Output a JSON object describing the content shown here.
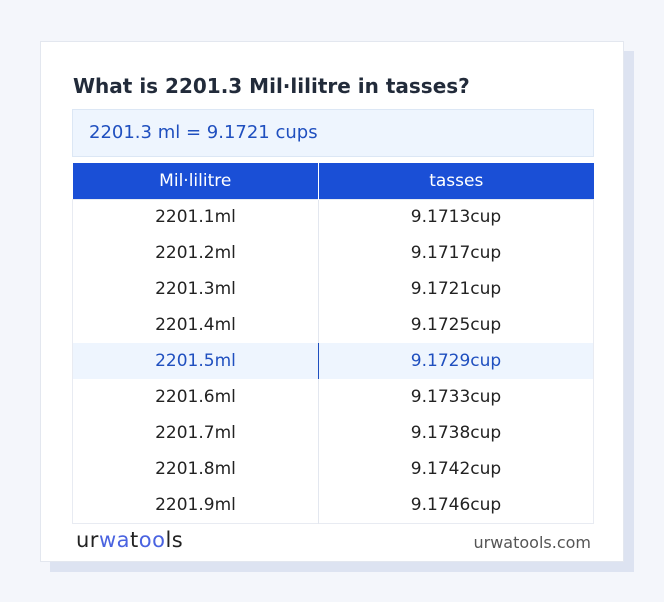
{
  "title": "What is 2201.3 Mil·lilitre in tasses?",
  "result": "2201.3 ml = 9.1721 cups",
  "table": {
    "headers": [
      "Mil·lilitre",
      "tasses"
    ],
    "rows": [
      [
        "2201.1ml",
        "9.1713cup"
      ],
      [
        "2201.2ml",
        "9.1717cup"
      ],
      [
        "2201.3ml",
        "9.1721cup"
      ],
      [
        "2201.4ml",
        "9.1725cup"
      ],
      [
        "2201.5ml",
        "9.1729cup"
      ],
      [
        "2201.6ml",
        "9.1733cup"
      ],
      [
        "2201.7ml",
        "9.1738cup"
      ],
      [
        "2201.8ml",
        "9.1742cup"
      ],
      [
        "2201.9ml",
        "9.1746cup"
      ]
    ],
    "highlighted_row": 4
  },
  "logo": "urwatools",
  "site": "urwatools.com",
  "colors": {
    "accent": "#1a4fd6",
    "highlight_bg": "#eef5fe"
  }
}
